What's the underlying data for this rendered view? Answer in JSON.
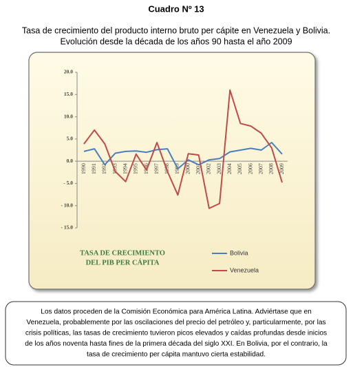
{
  "title": "Cuadro Nº 13",
  "subtitle": [
    "Tasa de crecimiento del producto interno bruto per cápite en Venezuela y Bolivia.",
    "Evolución desde la década de los años 90 hasta el año 2009"
  ],
  "chart_data": {
    "type": "line",
    "annotation": [
      "TASA DE CRECIMIENTO",
      "DEL PIB PER CÁPITA"
    ],
    "categories": [
      "1990",
      "1991",
      "1992",
      "1993",
      "1994",
      "1995",
      "1996",
      "1997",
      "1998",
      "1999",
      "2000",
      "2001",
      "2002",
      "2003",
      "2004",
      "2005",
      "2006",
      "2007",
      "2008",
      "2009"
    ],
    "series": [
      {
        "name": "Bolivia",
        "color": "#4a7ebb",
        "values": [
          2.2,
          2.8,
          -0.8,
          1.8,
          2.2,
          2.3,
          2.0,
          2.6,
          2.8,
          -1.7,
          0.3,
          -0.8,
          0.3,
          0.6,
          2.1,
          2.5,
          2.9,
          2.5,
          4.2,
          1.6
        ]
      },
      {
        "name": "Venezuela",
        "color": "#be4b48",
        "values": [
          3.9,
          7.0,
          3.9,
          -2.3,
          -4.6,
          1.6,
          -2.0,
          4.2,
          -2.3,
          -7.6,
          1.7,
          1.4,
          -10.6,
          -9.5,
          16.0,
          8.5,
          7.9,
          6.3,
          3.0,
          -4.8
        ]
      }
    ],
    "ylim": [
      -15,
      20
    ],
    "yticks": [
      {
        "value": 20,
        "label": "20.0"
      },
      {
        "value": 15,
        "label": "15.0"
      },
      {
        "value": 10,
        "label": "10.0"
      },
      {
        "value": 5,
        "label": "5.0"
      },
      {
        "value": 0,
        "label": "0.0"
      },
      {
        "value": -5,
        "label": "- 5.0"
      },
      {
        "value": -10,
        "label": "- 10.0"
      },
      {
        "value": -15,
        "label": "- 15.0"
      }
    ],
    "grid": false,
    "legend": "bottom-right"
  },
  "note": [
    "Los datos proceden de la Comisión Económica para América Latina. Adviértase que en",
    "Venezuela, probablemente por las oscilaciones del precio del petróleo y, particularmente, por las",
    "crisis políticas, las tasas de crecimiento tuvieron picos elevados y caídas profundas desde inicios",
    "de los años noventa hasta fines de la primera década del siglo XXI. En Bolivia, por el contrario, la",
    "tasa de crecimiento per cápita mantuvo cierta estabilidad."
  ]
}
